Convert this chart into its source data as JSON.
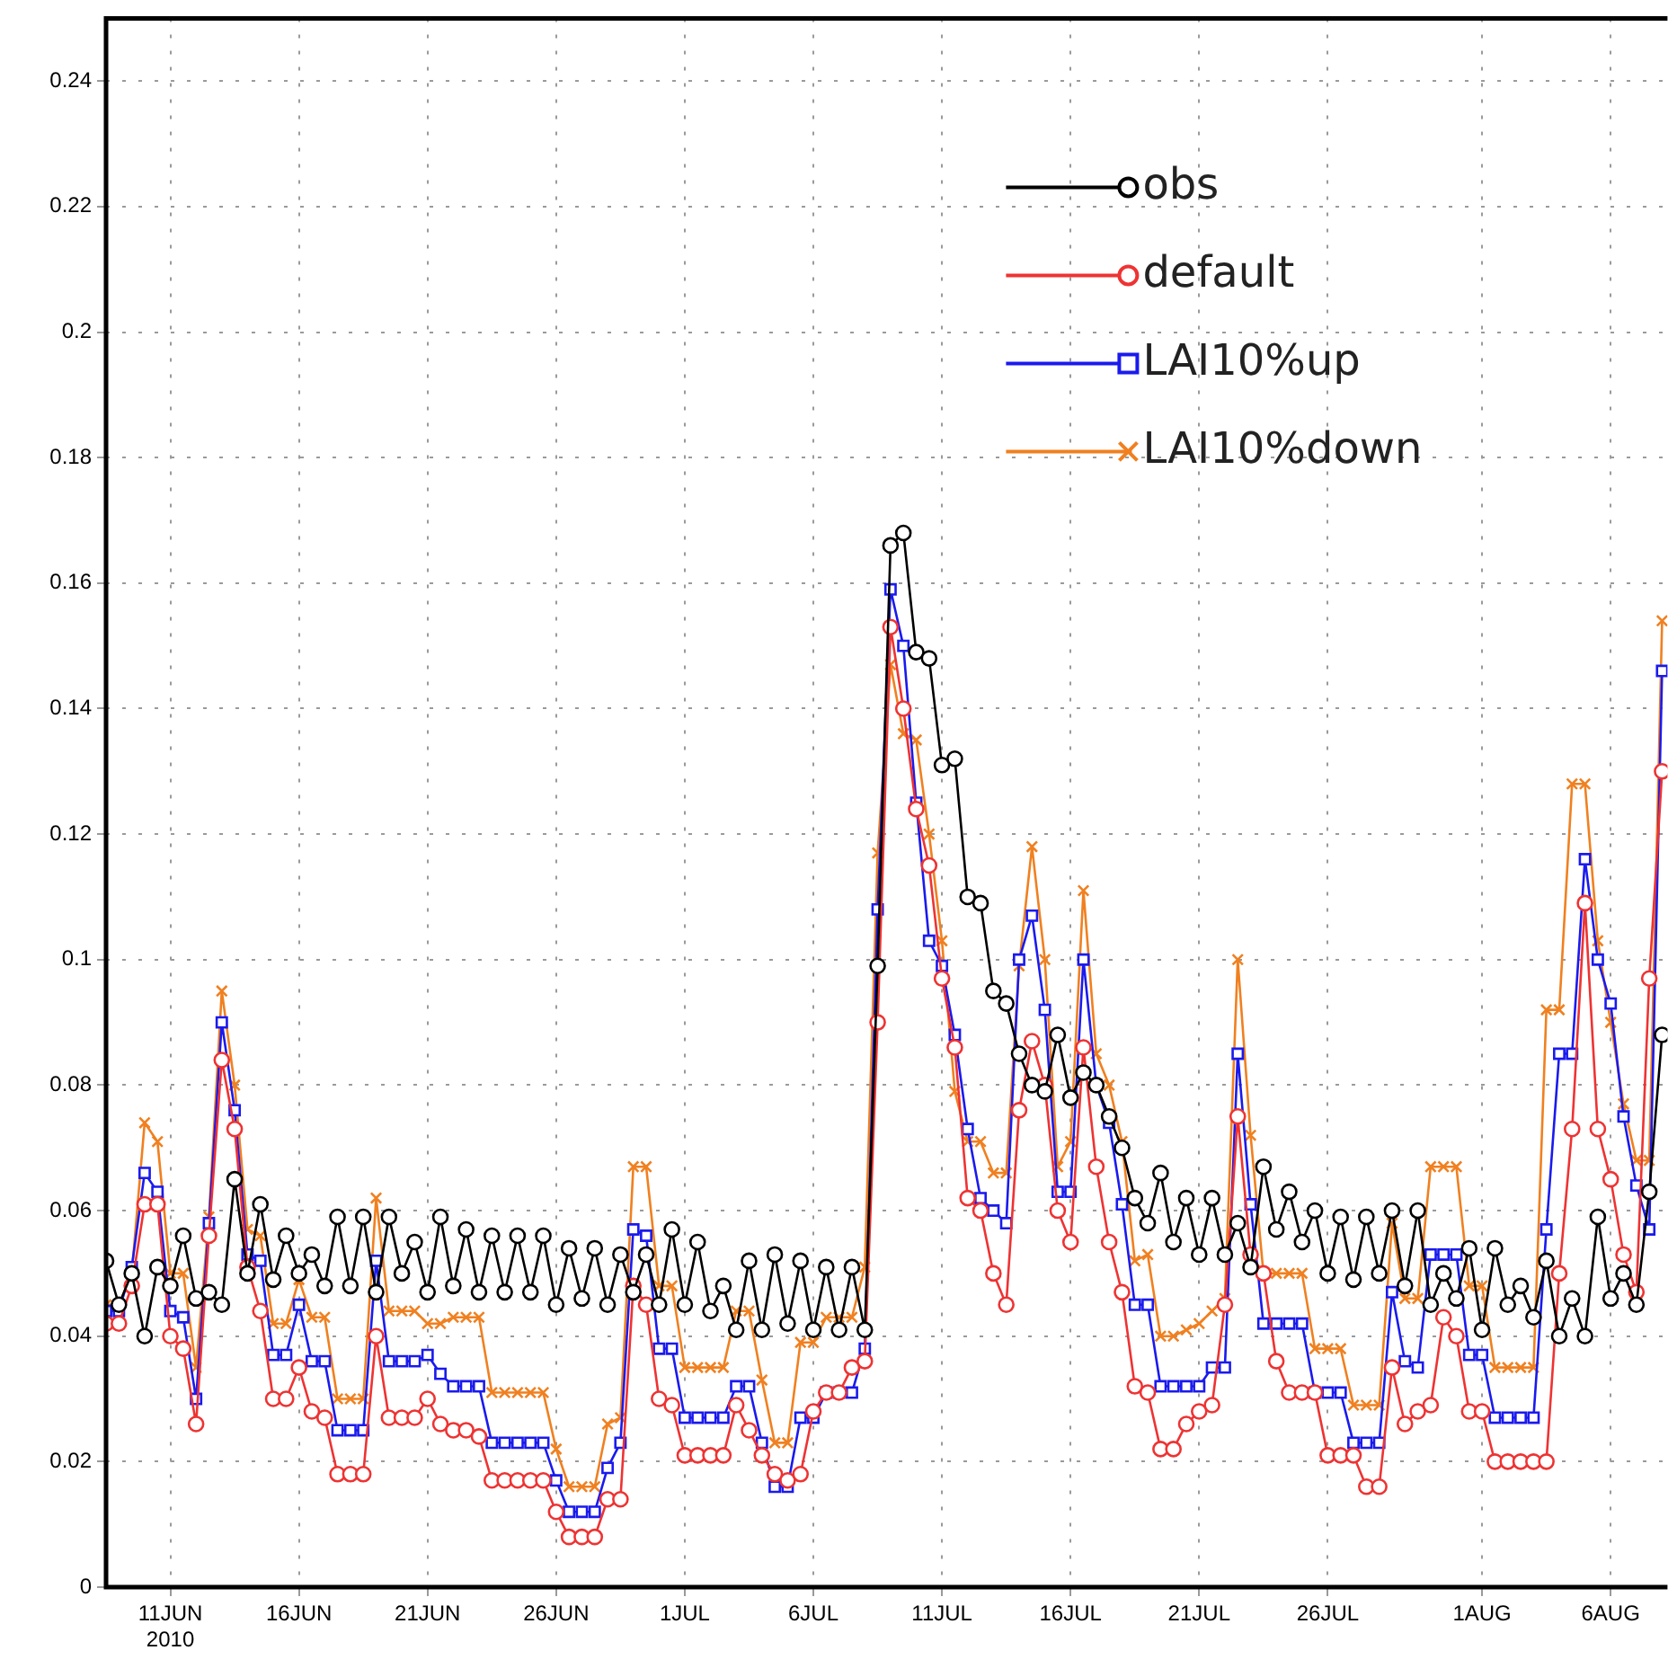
{
  "chart_data": {
    "type": "line",
    "x": [
      "2010-06-08T12:00",
      "2010-06-09T00:00",
      "2010-06-09T12:00",
      "2010-06-10T00:00",
      "2010-06-10T12:00",
      "2010-06-11T00:00",
      "2010-06-11T12:00",
      "2010-06-12T00:00",
      "2010-06-12T12:00",
      "2010-06-13T00:00",
      "2010-06-13T12:00",
      "2010-06-14T00:00",
      "2010-06-14T12:00",
      "2010-06-15T00:00",
      "2010-06-15T12:00",
      "2010-06-16T00:00",
      "2010-06-16T12:00",
      "2010-06-17T00:00",
      "2010-06-17T12:00",
      "2010-06-18T00:00",
      "2010-06-18T12:00",
      "2010-06-19T00:00",
      "2010-06-19T12:00",
      "2010-06-20T00:00",
      "2010-06-20T12:00",
      "2010-06-21T00:00",
      "2010-06-21T12:00",
      "2010-06-22T00:00",
      "2010-06-22T12:00",
      "2010-06-23T00:00",
      "2010-06-23T12:00",
      "2010-06-24T00:00",
      "2010-06-24T12:00",
      "2010-06-25T00:00",
      "2010-06-25T12:00",
      "2010-06-26T00:00",
      "2010-06-26T12:00",
      "2010-06-27T00:00",
      "2010-06-27T12:00",
      "2010-06-28T00:00",
      "2010-06-28T12:00",
      "2010-06-29T00:00",
      "2010-06-29T12:00",
      "2010-06-30T00:00",
      "2010-06-30T12:00",
      "2010-07-01T00:00",
      "2010-07-01T12:00",
      "2010-07-02T00:00",
      "2010-07-02T12:00",
      "2010-07-03T00:00",
      "2010-07-03T12:00",
      "2010-07-04T00:00",
      "2010-07-04T12:00",
      "2010-07-05T00:00",
      "2010-07-05T12:00",
      "2010-07-06T00:00",
      "2010-07-06T12:00",
      "2010-07-07T00:00",
      "2010-07-07T12:00",
      "2010-07-08T00:00",
      "2010-07-08T12:00",
      "2010-07-09T00:00",
      "2010-07-09T12:00",
      "2010-07-10T00:00",
      "2010-07-10T12:00",
      "2010-07-11T00:00",
      "2010-07-11T12:00",
      "2010-07-12T00:00",
      "2010-07-12T12:00",
      "2010-07-13T00:00",
      "2010-07-13T12:00",
      "2010-07-14T00:00",
      "2010-07-14T12:00",
      "2010-07-15T00:00",
      "2010-07-15T12:00",
      "2010-07-16T00:00",
      "2010-07-16T12:00",
      "2010-07-17T00:00",
      "2010-07-17T12:00",
      "2010-07-18T00:00",
      "2010-07-18T12:00",
      "2010-07-19T00:00",
      "2010-07-19T12:00",
      "2010-07-20T00:00",
      "2010-07-20T12:00",
      "2010-07-21T00:00",
      "2010-07-21T12:00",
      "2010-07-22T00:00",
      "2010-07-22T12:00",
      "2010-07-23T00:00",
      "2010-07-23T12:00",
      "2010-07-24T00:00",
      "2010-07-24T12:00",
      "2010-07-25T00:00",
      "2010-07-25T12:00",
      "2010-07-26T00:00",
      "2010-07-26T12:00",
      "2010-07-27T00:00",
      "2010-07-27T12:00",
      "2010-07-28T00:00",
      "2010-07-28T12:00",
      "2010-07-29T00:00",
      "2010-07-29T12:00",
      "2010-07-30T00:00",
      "2010-07-30T12:00",
      "2010-07-31T00:00",
      "2010-07-31T12:00",
      "2010-08-01T00:00",
      "2010-08-01T12:00",
      "2010-08-02T00:00",
      "2010-08-02T12:00",
      "2010-08-03T00:00",
      "2010-08-03T12:00",
      "2010-08-04T00:00",
      "2010-08-04T12:00",
      "2010-08-05T00:00",
      "2010-08-05T12:00",
      "2010-08-06T00:00",
      "2010-08-06T12:00",
      "2010-08-07T00:00",
      "2010-08-07T12:00",
      "2010-08-08T00:00"
    ],
    "series": [
      {
        "name": "obs",
        "color": "#000000",
        "marker": "circle",
        "values": [
          0.052,
          0.045,
          0.05,
          0.04,
          0.051,
          0.048,
          0.056,
          0.046,
          0.047,
          0.045,
          0.065,
          0.05,
          0.061,
          0.049,
          0.056,
          0.05,
          0.053,
          0.048,
          0.059,
          0.048,
          0.059,
          0.047,
          0.059,
          0.05,
          0.055,
          0.047,
          0.059,
          0.048,
          0.057,
          0.047,
          0.056,
          0.047,
          0.056,
          0.047,
          0.056,
          0.045,
          0.054,
          0.046,
          0.054,
          0.045,
          0.053,
          0.047,
          0.053,
          0.045,
          0.057,
          0.045,
          0.055,
          0.044,
          0.048,
          0.041,
          0.052,
          0.041,
          0.053,
          0.042,
          0.052,
          0.041,
          0.051,
          0.041,
          0.051,
          0.041,
          0.099,
          0.166,
          0.168,
          0.149,
          0.148,
          0.131,
          0.132,
          0.11,
          0.109,
          0.095,
          0.093,
          0.085,
          0.08,
          0.079,
          0.088,
          0.078,
          0.082,
          0.08,
          0.075,
          0.07,
          0.062,
          0.058,
          0.066,
          0.055,
          0.062,
          0.053,
          0.062,
          0.053,
          0.058,
          0.051,
          0.067,
          0.057,
          0.063,
          0.055,
          0.06,
          0.05,
          0.059,
          0.049,
          0.059,
          0.05,
          0.06,
          0.048,
          0.06,
          0.045,
          0.05,
          0.046,
          0.054,
          0.041,
          0.054,
          0.045,
          0.048,
          0.043,
          0.052,
          0.04,
          0.046,
          0.04,
          0.059,
          0.046,
          0.05,
          0.045,
          0.063,
          0.088
        ]
      },
      {
        "name": "default",
        "color": "#ee3333",
        "marker": "circle",
        "values": [
          0.042,
          0.042,
          0.048,
          0.061,
          0.061,
          0.04,
          0.038,
          0.026,
          0.056,
          0.084,
          0.073,
          0.051,
          0.044,
          0.03,
          0.03,
          0.035,
          0.028,
          0.027,
          0.018,
          0.018,
          0.018,
          0.04,
          0.027,
          0.027,
          0.027,
          0.03,
          0.026,
          0.025,
          0.025,
          0.024,
          0.017,
          0.017,
          0.017,
          0.017,
          0.017,
          0.012,
          0.008,
          0.008,
          0.008,
          0.014,
          0.014,
          0.048,
          0.045,
          0.03,
          0.029,
          0.021,
          0.021,
          0.021,
          0.021,
          0.029,
          0.025,
          0.021,
          0.018,
          0.017,
          0.018,
          0.028,
          0.031,
          0.031,
          0.035,
          0.036,
          0.09,
          0.153,
          0.14,
          0.124,
          0.115,
          0.097,
          0.086,
          0.062,
          0.06,
          0.05,
          0.045,
          0.076,
          0.087,
          0.08,
          0.06,
          0.055,
          0.086,
          0.067,
          0.055,
          0.047,
          0.032,
          0.031,
          0.022,
          0.022,
          0.026,
          0.028,
          0.029,
          0.045,
          0.075,
          0.053,
          0.05,
          0.036,
          0.031,
          0.031,
          0.031,
          0.021,
          0.021,
          0.021,
          0.016,
          0.016,
          0.035,
          0.026,
          0.028,
          0.029,
          0.043,
          0.04,
          0.028,
          0.028,
          0.02,
          0.02,
          0.02,
          0.02,
          0.02,
          0.05,
          0.073,
          0.109,
          0.073,
          0.065,
          0.053,
          0.047,
          0.097,
          0.13
        ]
      },
      {
        "name": "LAI10%up",
        "color": "#1a1aee",
        "marker": "square",
        "values": [
          0.044,
          0.044,
          0.051,
          0.066,
          0.063,
          0.044,
          0.043,
          0.03,
          0.058,
          0.09,
          0.076,
          0.053,
          0.052,
          0.037,
          0.037,
          0.045,
          0.036,
          0.036,
          0.025,
          0.025,
          0.025,
          0.052,
          0.036,
          0.036,
          0.036,
          0.037,
          0.034,
          0.032,
          0.032,
          0.032,
          0.023,
          0.023,
          0.023,
          0.023,
          0.023,
          0.017,
          0.012,
          0.012,
          0.012,
          0.019,
          0.023,
          0.057,
          0.056,
          0.038,
          0.038,
          0.027,
          0.027,
          0.027,
          0.027,
          0.032,
          0.032,
          0.023,
          0.016,
          0.016,
          0.027,
          0.027,
          0.031,
          0.031,
          0.031,
          0.038,
          0.108,
          0.159,
          0.15,
          0.125,
          0.103,
          0.099,
          0.088,
          0.073,
          0.062,
          0.06,
          0.058,
          0.1,
          0.107,
          0.092,
          0.063,
          0.063,
          0.1,
          0.08,
          0.074,
          0.061,
          0.045,
          0.045,
          0.032,
          0.032,
          0.032,
          0.032,
          0.035,
          0.035,
          0.085,
          0.061,
          0.042,
          0.042,
          0.042,
          0.042,
          0.031,
          0.031,
          0.031,
          0.023,
          0.023,
          0.023,
          0.047,
          0.036,
          0.035,
          0.053,
          0.053,
          0.053,
          0.037,
          0.037,
          0.027,
          0.027,
          0.027,
          0.027,
          0.057,
          0.085,
          0.085,
          0.116,
          0.1,
          0.093,
          0.075,
          0.064,
          0.057,
          0.146
        ]
      },
      {
        "name": "LAI10%down",
        "color": "#f08020",
        "marker": "cross",
        "values": [
          0.045,
          0.045,
          0.05,
          0.074,
          0.071,
          0.05,
          0.05,
          0.035,
          0.059,
          0.095,
          0.08,
          0.057,
          0.056,
          0.042,
          0.042,
          0.049,
          0.043,
          0.043,
          0.03,
          0.03,
          0.03,
          0.062,
          0.044,
          0.044,
          0.044,
          0.042,
          0.042,
          0.043,
          0.043,
          0.043,
          0.031,
          0.031,
          0.031,
          0.031,
          0.031,
          0.022,
          0.016,
          0.016,
          0.016,
          0.026,
          0.027,
          0.067,
          0.067,
          0.048,
          0.048,
          0.035,
          0.035,
          0.035,
          0.035,
          0.044,
          0.044,
          0.033,
          0.023,
          0.023,
          0.039,
          0.039,
          0.043,
          0.043,
          0.043,
          0.051,
          0.117,
          0.147,
          0.136,
          0.135,
          0.12,
          0.103,
          0.079,
          0.071,
          0.071,
          0.066,
          0.066,
          0.099,
          0.118,
          0.1,
          0.067,
          0.071,
          0.111,
          0.085,
          0.08,
          0.071,
          0.052,
          0.053,
          0.04,
          0.04,
          0.041,
          0.042,
          0.044,
          0.046,
          0.1,
          0.072,
          0.05,
          0.05,
          0.05,
          0.05,
          0.038,
          0.038,
          0.038,
          0.029,
          0.029,
          0.029,
          0.058,
          0.046,
          0.046,
          0.067,
          0.067,
          0.067,
          0.048,
          0.048,
          0.035,
          0.035,
          0.035,
          0.035,
          0.092,
          0.092,
          0.128,
          0.128,
          0.103,
          0.09,
          0.077,
          0.068,
          0.068,
          0.154
        ]
      }
    ],
    "xlim": [
      "2010-06-08T12:00",
      "2010-08-08T05:00"
    ],
    "xticks": [
      {
        "value": "2010-06-11",
        "label": "11JUN\n2010"
      },
      {
        "value": "2010-06-16",
        "label": "16JUN"
      },
      {
        "value": "2010-06-21",
        "label": "21JUN"
      },
      {
        "value": "2010-06-26",
        "label": "26JUN"
      },
      {
        "value": "2010-07-01",
        "label": "1JUL"
      },
      {
        "value": "2010-07-06",
        "label": "6JUL"
      },
      {
        "value": "2010-07-11",
        "label": "11JUL"
      },
      {
        "value": "2010-07-16",
        "label": "16JUL"
      },
      {
        "value": "2010-07-21",
        "label": "21JUL"
      },
      {
        "value": "2010-07-26",
        "label": "26JUL"
      },
      {
        "value": "2010-08-01",
        "label": "1AUG"
      },
      {
        "value": "2010-08-06",
        "label": "6AUG"
      }
    ],
    "ylim": [
      0,
      0.25
    ],
    "yticks": [
      0,
      0.02,
      0.04,
      0.06,
      0.08,
      0.1,
      0.12,
      0.14,
      0.16,
      0.18,
      0.2,
      0.22,
      0.24
    ],
    "grid": true,
    "legend": "top right",
    "line_style": "solid"
  }
}
